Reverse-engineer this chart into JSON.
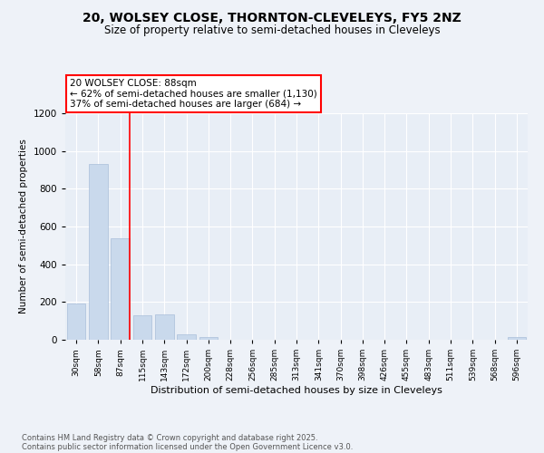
{
  "title1": "20, WOLSEY CLOSE, THORNTON-CLEVELEYS, FY5 2NZ",
  "title2": "Size of property relative to semi-detached houses in Cleveleys",
  "xlabel": "Distribution of semi-detached houses by size in Cleveleys",
  "ylabel": "Number of semi-detached properties",
  "categories": [
    "30sqm",
    "58sqm",
    "87sqm",
    "115sqm",
    "143sqm",
    "172sqm",
    "200sqm",
    "228sqm",
    "256sqm",
    "285sqm",
    "313sqm",
    "341sqm",
    "370sqm",
    "398sqm",
    "426sqm",
    "455sqm",
    "483sqm",
    "511sqm",
    "539sqm",
    "568sqm",
    "596sqm"
  ],
  "values": [
    190,
    930,
    540,
    130,
    135,
    30,
    15,
    0,
    0,
    0,
    0,
    0,
    0,
    0,
    0,
    0,
    0,
    0,
    0,
    0,
    15
  ],
  "bar_color": "#c9d9ec",
  "bar_edge_color": "#aabfda",
  "red_line_index": 2,
  "annotation_title": "20 WOLSEY CLOSE: 88sqm",
  "annotation_line1": "← 62% of semi-detached houses are smaller (1,130)",
  "annotation_line2": "37% of semi-detached houses are larger (684) →",
  "ylim": [
    0,
    1200
  ],
  "yticks": [
    0,
    200,
    400,
    600,
    800,
    1000,
    1200
  ],
  "footer1": "Contains HM Land Registry data © Crown copyright and database right 2025.",
  "footer2": "Contains public sector information licensed under the Open Government Licence v3.0.",
  "bg_color": "#eef2f8",
  "plot_bg_color": "#e8eef6"
}
